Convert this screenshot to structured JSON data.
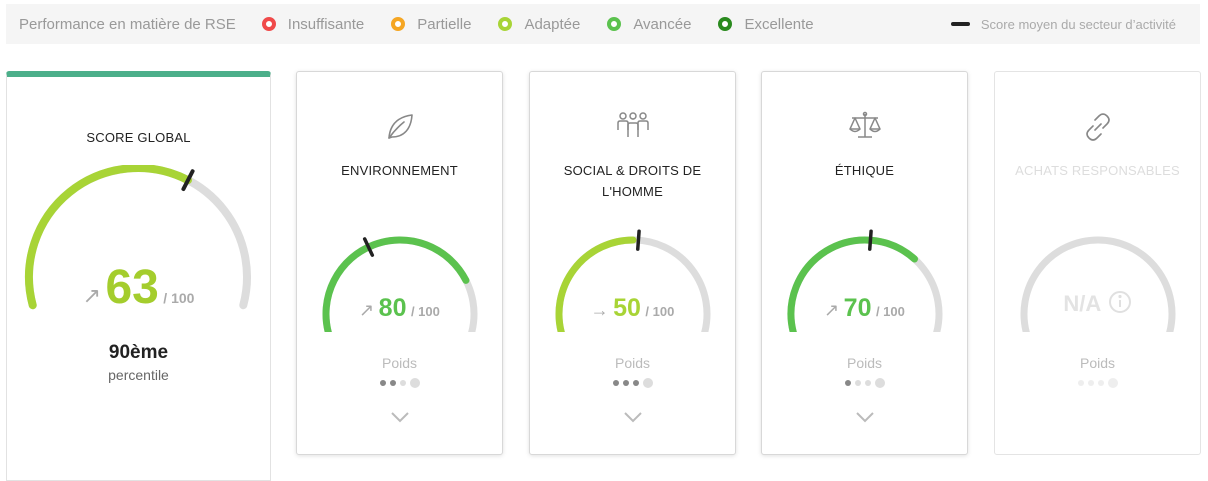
{
  "legend": {
    "title": "Performance en matière de RSE",
    "items": [
      {
        "label": "Insuffisante",
        "color": "#f04a4a"
      },
      {
        "label": "Partielle",
        "color": "#f5a623"
      },
      {
        "label": "Adaptée",
        "color": "#a8d436"
      },
      {
        "label": "Avancée",
        "color": "#5bc24e"
      },
      {
        "label": "Excellente",
        "color": "#2a8a1e"
      }
    ],
    "average_label": "Score moyen du secteur d’activité"
  },
  "global": {
    "title": "SCORE GLOBAL",
    "arrow": "↗",
    "score": "63",
    "out_of": "/ 100",
    "score_fraction": 0.63,
    "sector_avg_fraction": 0.63,
    "color": "#a8d436",
    "rank": "90ème",
    "rank_label": "percentile"
  },
  "pillars": [
    {
      "title": "ENVIRONNEMENT",
      "icon": "leaf-icon",
      "arrow": "↗",
      "score": "80",
      "out_of": "/ 100",
      "score_fraction": 0.8,
      "sector_avg_fraction": 0.38,
      "color": "#5bc24e",
      "poids_label": "Poids",
      "weight_active": 2,
      "weight_total": 4
    },
    {
      "title": "SOCIAL & DROITS DE L'HOMME",
      "icon": "people-icon",
      "arrow": "→",
      "score": "50",
      "out_of": "/ 100",
      "score_fraction": 0.5,
      "sector_avg_fraction": 0.52,
      "color": "#a8d436",
      "poids_label": "Poids",
      "weight_active": 3,
      "weight_total": 4
    },
    {
      "title": "ÉTHIQUE",
      "icon": "scales-icon",
      "arrow": "↗",
      "score": "70",
      "out_of": "/ 100",
      "score_fraction": 0.7,
      "sector_avg_fraction": 0.52,
      "color": "#5bc24e",
      "poids_label": "Poids",
      "weight_active": 1,
      "weight_total": 4
    },
    {
      "title": "ACHATS RESPONSABLES",
      "icon": "link-icon",
      "na": "N/A",
      "poids_label": "Poids",
      "weight_active": 0,
      "weight_total": 4
    }
  ]
}
